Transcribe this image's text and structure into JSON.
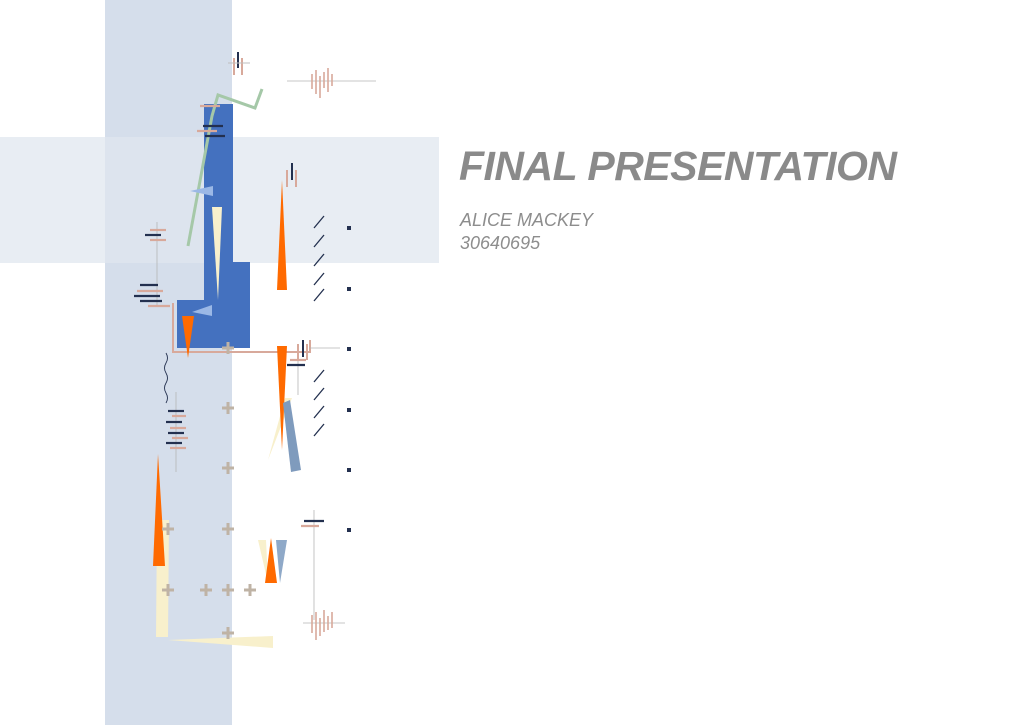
{
  "slide": {
    "title": "FINAL PRESENTATION",
    "author": "ALICE MACKEY",
    "student_id": "30640695"
  },
  "colors": {
    "title_text": "#8a8a8a",
    "band_vertical": "#d5deeb",
    "band_horizontal": "#e8edf3",
    "blue_block": "#4471bf",
    "orange": "#ff6a00",
    "cream": "#f8f0cc",
    "green_line": "#a5c8a8",
    "salmon": "#d8a99b",
    "navy": "#23304f",
    "plus_taupe": "#bfb3a5",
    "steel_blue": "#7f9bbd"
  }
}
